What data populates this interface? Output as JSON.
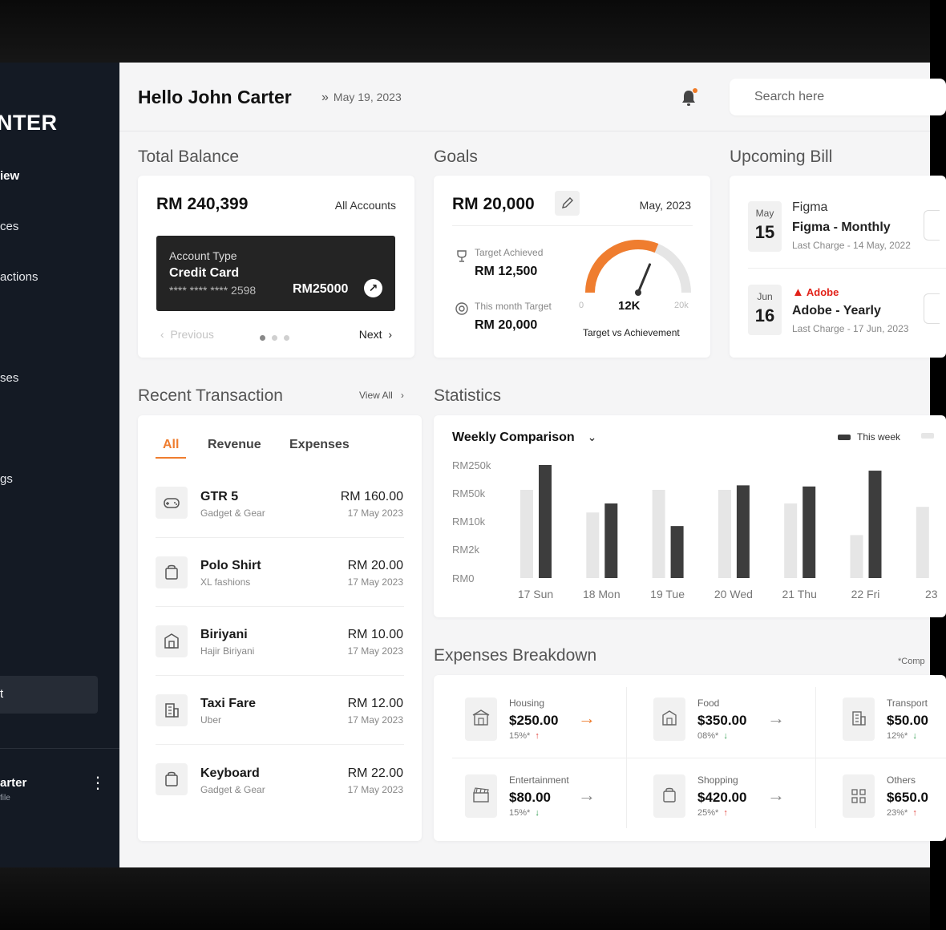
{
  "brand": {
    "logo_text": "NTER"
  },
  "sidebar": {
    "items": [
      {
        "label": "iew",
        "active": true
      },
      {
        "label": "ces"
      },
      {
        "label": "actions"
      },
      {
        "label": "ses"
      },
      {
        "label": "gs"
      },
      {
        "label": "t"
      }
    ],
    "profile": {
      "name": "arter",
      "sub": "file"
    }
  },
  "header": {
    "greeting": "Hello John Carter",
    "date": "May 19, 2023",
    "search_placeholder": "Search here"
  },
  "total_balance": {
    "title": "Total Balance",
    "amount": "RM 240,399",
    "filter": "All Accounts",
    "account_type_label": "Account Type",
    "account_type": "Credit Card",
    "card_mask": "**** **** **** 2598",
    "card_amount": "RM25000",
    "previous": "Previous",
    "next": "Next"
  },
  "goals": {
    "title": "Goals",
    "amount": "RM 20,000",
    "period": "May, 2023",
    "target_achieved_label": "Target Achieved",
    "target_achieved": "RM 12,500",
    "month_target_label": "This month Target",
    "month_target": "RM 20,000",
    "gauge_min": "0",
    "gauge_value": "12K",
    "gauge_max": "20k",
    "gauge_fraction": 0.625,
    "gauge_caption": "Target vs Achievement"
  },
  "upcoming_bill": {
    "title": "Upcoming Bill",
    "bills": [
      {
        "month": "May",
        "day": "15",
        "brand": "Figma",
        "name": "Figma - Monthly",
        "last": "Last Charge - 14 May, 2022"
      },
      {
        "month": "Jun",
        "day": "16",
        "brand": "Adobe",
        "name": "Adobe - Yearly",
        "last": "Last Charge - 17 Jun, 2023"
      }
    ]
  },
  "recent_transaction": {
    "title": "Recent Transaction",
    "view_all": "View All",
    "tabs": [
      "All",
      "Revenue",
      "Expenses"
    ],
    "items": [
      {
        "name": "GTR 5",
        "category": "Gadget & Gear",
        "amount": "RM 160.00",
        "date": "17 May 2023",
        "icon": "gamepad-icon"
      },
      {
        "name": "Polo Shirt",
        "category": "XL fashions",
        "amount": "RM 20.00",
        "date": "17 May 2023",
        "icon": "shopping-bag-icon"
      },
      {
        "name": "Biriyani",
        "category": "Hajir Biriyani",
        "amount": "RM 10.00",
        "date": "17 May 2023",
        "icon": "restaurant-icon"
      },
      {
        "name": "Taxi Fare",
        "category": "Uber",
        "amount": "RM 12.00",
        "date": "17 May 2023",
        "icon": "building-icon"
      },
      {
        "name": "Keyboard",
        "category": "Gadget & Gear",
        "amount": "RM 22.00",
        "date": "17 May 2023",
        "icon": "shopping-bag-icon"
      }
    ]
  },
  "statistics": {
    "title": "Statistics",
    "dropdown": "Weekly Comparison",
    "legend_this_week": "This week"
  },
  "chart_data": {
    "type": "bar",
    "categories": [
      "17 Sun",
      "18 Mon",
      "19 Tue",
      "20 Wed",
      "21 Thu",
      "22 Fri",
      "23"
    ],
    "y_ticks": [
      "RM250k",
      "RM50k",
      "RM10k",
      "RM2k",
      "RM0"
    ],
    "series": [
      {
        "name": "",
        "values": [
          0.78,
          0.58,
          0.78,
          0.78,
          0.66,
          0.38,
          0.63
        ]
      },
      {
        "name": "This week",
        "values": [
          1.0,
          0.66,
          0.46,
          0.82,
          0.81,
          0.95,
          null
        ]
      }
    ],
    "grid": false,
    "legend": "top-right",
    "colors": {
      "last": "#e6e6e6",
      "this": "#3d3d3d"
    }
  },
  "expenses": {
    "title": "Expenses Breakdown",
    "note": "*Comp",
    "items": [
      {
        "label": "Housing",
        "amount": "$250.00",
        "pct": "15%*",
        "dir": "up",
        "icon": "house-icon"
      },
      {
        "label": "Food",
        "amount": "$350.00",
        "pct": "08%*",
        "dir": "down",
        "icon": "restaurant-icon"
      },
      {
        "label": "Transport",
        "amount": "$50.00",
        "pct": "12%*",
        "dir": "down",
        "icon": "building-icon"
      },
      {
        "label": "Entertainment",
        "amount": "$80.00",
        "pct": "15%*",
        "dir": "down",
        "icon": "clapper-icon"
      },
      {
        "label": "Shopping",
        "amount": "$420.00",
        "pct": "25%*",
        "dir": "up",
        "icon": "shopping-bag-icon"
      },
      {
        "label": "Others",
        "amount": "$650.0",
        "pct": "23%*",
        "dir": "up",
        "icon": "grid-icon"
      }
    ]
  },
  "colors": {
    "accent": "#ef7d2f",
    "sidebar": "#141a24"
  }
}
